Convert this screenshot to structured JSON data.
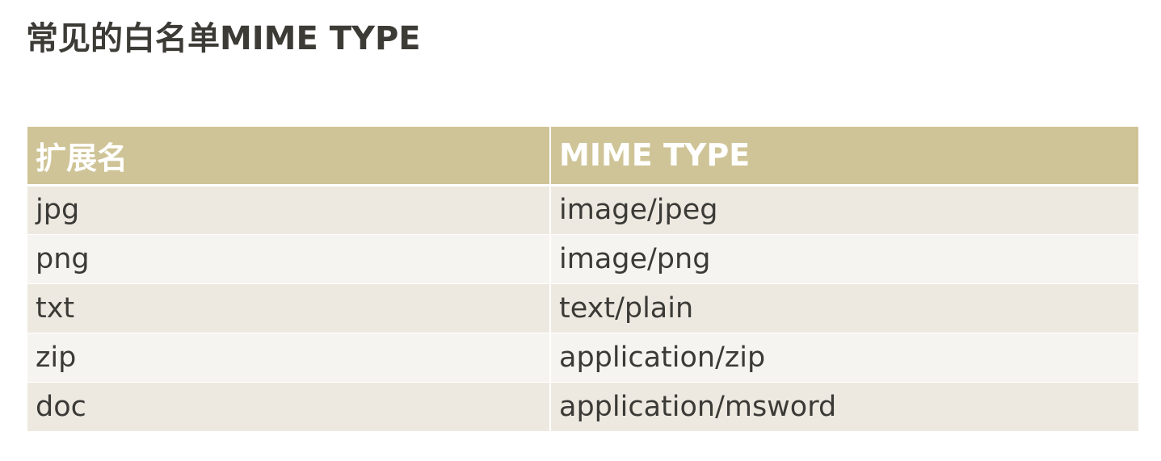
{
  "title": "常见的白名单MIME TYPE",
  "table": {
    "headers": [
      "扩展名",
      "MIME TYPE"
    ],
    "rows": [
      [
        "jpg",
        "image/jpeg"
      ],
      [
        "png",
        "image/png"
      ],
      [
        "txt",
        "text/plain"
      ],
      [
        "zip",
        "application/zip"
      ],
      [
        "doc",
        "application/msword"
      ]
    ]
  },
  "colors": {
    "header_bg": "#cfc497",
    "header_text": "#ffffff",
    "row_odd": "#ede9e0",
    "row_even": "#f6f4f0",
    "text": "#3b3a36"
  }
}
